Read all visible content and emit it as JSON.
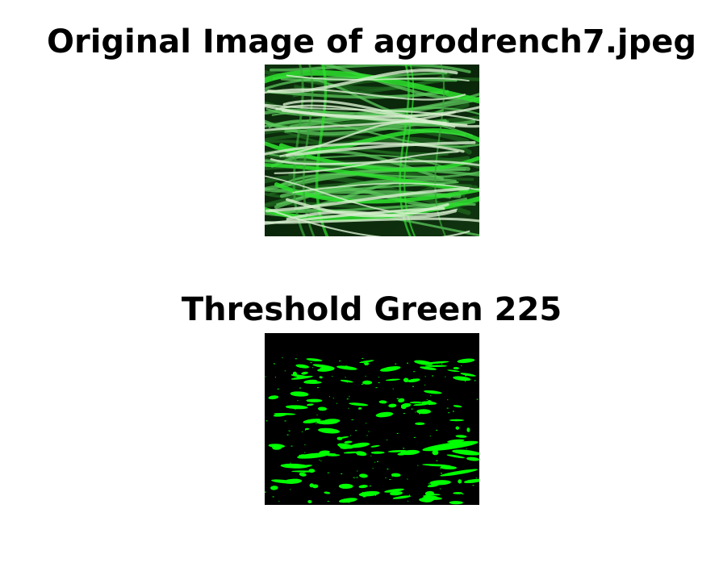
{
  "figure": {
    "panels": [
      {
        "title": "Original Image of agrodrench7.jpeg",
        "kind": "photo",
        "description_colors": {
          "background": "#0c2a0c",
          "strand_light": "#d8f0d0",
          "strand_mid": "#5cc85c",
          "strand_bright": "#2ee02e"
        }
      },
      {
        "title": "Threshold Green 225",
        "kind": "binary-mask",
        "description_colors": {
          "background": "#000000",
          "mask": "#00ff00"
        }
      }
    ]
  }
}
